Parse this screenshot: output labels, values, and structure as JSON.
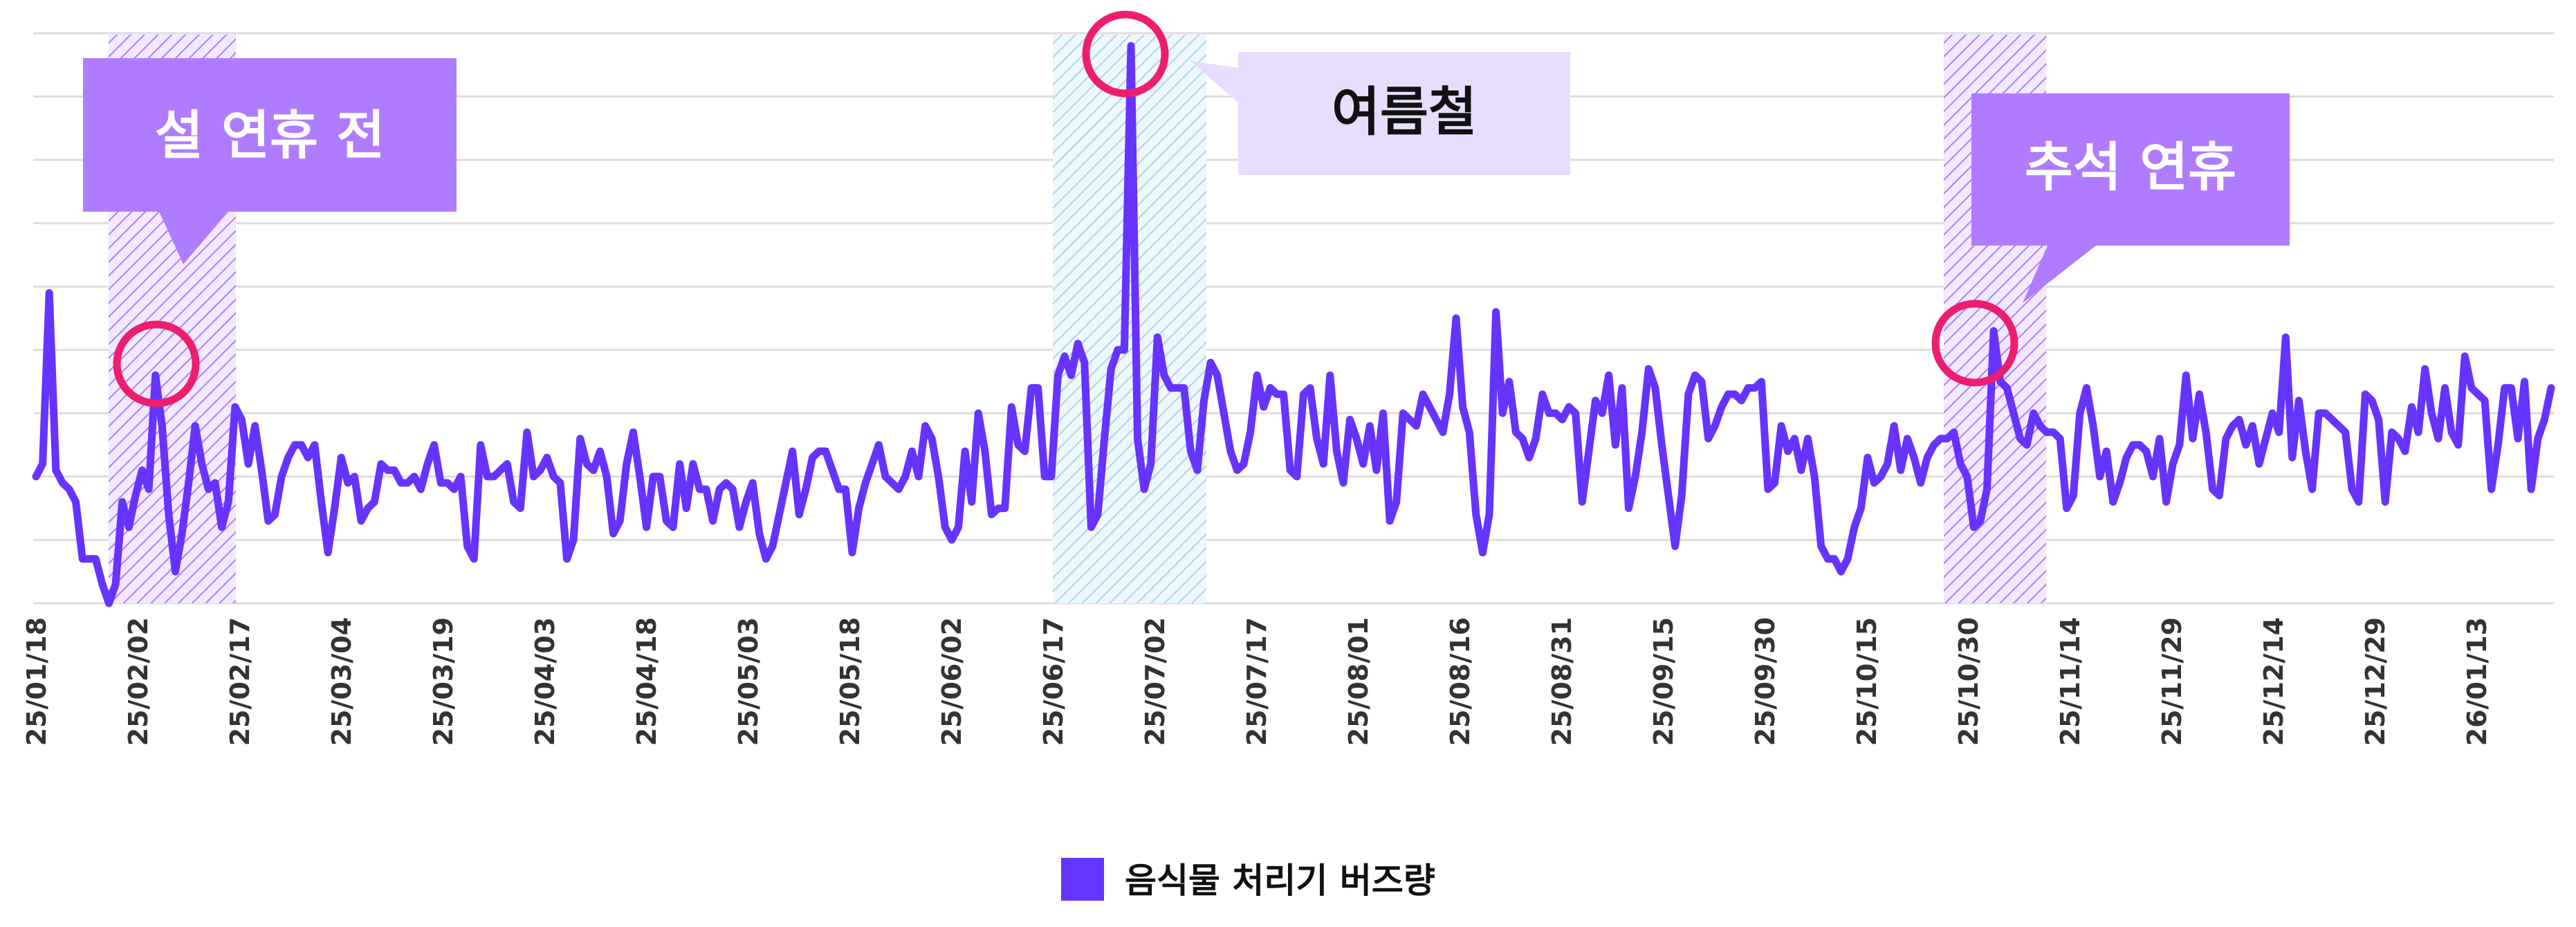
{
  "chart_data": {
    "type": "line",
    "title": "",
    "xlabel": "",
    "ylabel": "",
    "grid": true,
    "legend_placement": "bottom-center",
    "tick_labels": [
      "25/01/18",
      "25/02/02",
      "25/02/17",
      "25/03/04",
      "25/03/19",
      "25/04/03",
      "25/04/18",
      "25/05/03",
      "25/05/18",
      "25/06/02",
      "25/06/17",
      "25/07/02",
      "25/07/17",
      "25/08/01",
      "25/08/16",
      "25/08/31",
      "25/09/15",
      "25/09/30",
      "25/10/15",
      "25/10/30",
      "25/11/14",
      "25/11/29",
      "25/12/14",
      "25/12/29",
      "26/01/13"
    ],
    "x_start": "2025-01-18",
    "x_end": "2026-01-24",
    "y_range": [
      0,
      9
    ],
    "series": [
      {
        "name": "음식물 처리기 버즈량",
        "color": "#6633ff",
        "values": [
          2.0,
          2.2,
          4.9,
          2.1,
          1.9,
          1.8,
          1.6,
          0.7,
          0.7,
          0.7,
          0.3,
          0.0,
          0.3,
          1.6,
          1.2,
          1.7,
          2.1,
          1.8,
          3.6,
          2.8,
          1.4,
          0.5,
          1.1,
          1.9,
          2.8,
          2.2,
          1.8,
          1.9,
          1.2,
          1.6,
          3.1,
          2.9,
          2.2,
          2.8,
          2.1,
          1.3,
          1.4,
          2.0,
          2.3,
          2.5,
          2.5,
          2.3,
          2.5,
          1.6,
          0.8,
          1.5,
          2.3,
          1.9,
          2.0,
          1.3,
          1.5,
          1.6,
          2.2,
          2.1,
          2.1,
          1.9,
          1.9,
          2.0,
          1.8,
          2.2,
          2.5,
          1.9,
          1.9,
          1.8,
          2.0,
          0.9,
          0.7,
          2.5,
          2.0,
          2.0,
          2.1,
          2.2,
          1.6,
          1.5,
          2.7,
          2.0,
          2.1,
          2.3,
          2.0,
          1.9,
          0.7,
          1.0,
          2.6,
          2.2,
          2.1,
          2.4,
          2.0,
          1.1,
          1.3,
          2.2,
          2.7,
          2.0,
          1.2,
          2.0,
          2.0,
          1.3,
          1.2,
          2.2,
          1.5,
          2.2,
          1.8,
          1.8,
          1.3,
          1.8,
          1.9,
          1.8,
          1.2,
          1.6,
          1.9,
          1.1,
          0.7,
          0.9,
          1.4,
          1.9,
          2.4,
          1.4,
          1.8,
          2.3,
          2.4,
          2.4,
          2.1,
          1.8,
          1.8,
          0.8,
          1.5,
          1.9,
          2.2,
          2.5,
          2.0,
          1.9,
          1.8,
          2.0,
          2.4,
          2.0,
          2.8,
          2.6,
          2.0,
          1.2,
          1.0,
          1.2,
          2.4,
          1.6,
          3.0,
          2.4,
          1.4,
          1.5,
          1.5,
          3.1,
          2.5,
          2.4,
          3.4,
          3.4,
          2.0,
          2.0,
          3.6,
          3.9,
          3.6,
          4.1,
          3.8,
          1.2,
          1.4,
          2.6,
          3.7,
          4.0,
          4.0,
          8.8,
          2.6,
          1.8,
          2.2,
          4.2,
          3.6,
          3.4,
          3.4,
          3.4,
          2.4,
          2.1,
          3.2,
          3.8,
          3.6,
          3.0,
          2.4,
          2.1,
          2.2,
          2.7,
          3.6,
          3.1,
          3.4,
          3.3,
          3.3,
          2.1,
          2.0,
          3.3,
          3.4,
          2.6,
          2.2,
          3.6,
          2.4,
          1.9,
          2.9,
          2.6,
          2.2,
          2.8,
          2.1,
          3.0,
          1.3,
          1.6,
          3.0,
          2.9,
          2.8,
          3.3,
          3.1,
          2.9,
          2.7,
          3.3,
          4.5,
          3.1,
          2.7,
          1.4,
          0.8,
          1.4,
          4.6,
          3.0,
          3.5,
          2.7,
          2.6,
          2.3,
          2.6,
          3.3,
          3.0,
          3.0,
          2.9,
          3.1,
          3.0,
          1.6,
          2.4,
          3.2,
          3.0,
          3.6,
          2.5,
          3.4,
          1.5,
          2.0,
          2.7,
          3.7,
          3.4,
          2.5,
          1.7,
          0.9,
          1.7,
          3.3,
          3.6,
          3.5,
          2.6,
          2.8,
          3.1,
          3.3,
          3.3,
          3.2,
          3.4,
          3.4,
          3.5,
          1.8,
          1.9,
          2.8,
          2.4,
          2.6,
          2.1,
          2.6,
          2.0,
          0.9,
          0.7,
          0.7,
          0.5,
          0.7,
          1.2,
          1.5,
          2.3,
          1.9,
          2.0,
          2.2,
          2.8,
          2.1,
          2.6,
          2.3,
          1.9,
          2.3,
          2.5,
          2.6,
          2.6,
          2.7,
          2.2,
          2.0,
          1.2,
          1.3,
          1.8,
          4.3,
          3.5,
          3.4,
          3.0,
          2.6,
          2.5,
          3.0,
          2.8,
          2.7,
          2.7,
          2.6,
          1.5,
          1.7,
          3.0,
          3.4,
          2.8,
          2.0,
          2.4,
          1.6,
          1.9,
          2.3,
          2.5,
          2.5,
          2.4,
          2.0,
          2.6,
          1.6,
          2.2,
          2.5,
          3.6,
          2.6,
          3.3,
          2.7,
          1.8,
          1.7,
          2.6,
          2.8,
          2.9,
          2.5,
          2.8,
          2.2,
          2.6,
          3.0,
          2.7,
          4.2,
          2.3,
          3.2,
          2.4,
          1.8,
          3.0,
          3.0,
          2.9,
          2.8,
          2.7,
          1.8,
          1.6,
          3.3,
          3.2,
          2.9,
          1.6,
          2.7,
          2.6,
          2.4,
          3.1,
          2.7,
          3.7,
          3.0,
          2.6,
          3.4,
          2.7,
          2.5,
          3.9,
          3.4,
          3.3,
          3.2,
          1.8,
          2.5,
          3.4,
          3.4,
          2.6,
          3.5,
          1.8,
          2.6,
          2.9,
          3.4
        ]
      }
    ],
    "shaded_periods": [
      {
        "label": "설 연휴 전",
        "color": "#b07cff"
      },
      {
        "label": "여름철",
        "color": "#8fc7e6"
      },
      {
        "label": "추석 연휴",
        "color": "#b07cff"
      }
    ]
  },
  "annotations": [
    {
      "text": "설 연휴 전",
      "box_color": "#b07cff",
      "text_color": "#ffffff"
    },
    {
      "text": "여름철",
      "box_color": "#e8ddff",
      "text_color": "#111111"
    },
    {
      "text": "추석 연휴",
      "box_color": "#b07cff",
      "text_color": "#ffffff"
    }
  ],
  "highlight_circle_color": "#ee1e6e",
  "grid_color": "#dddddd",
  "legend": {
    "label": "음식물 처리기 버즈량",
    "swatch_color": "#6633ff"
  }
}
